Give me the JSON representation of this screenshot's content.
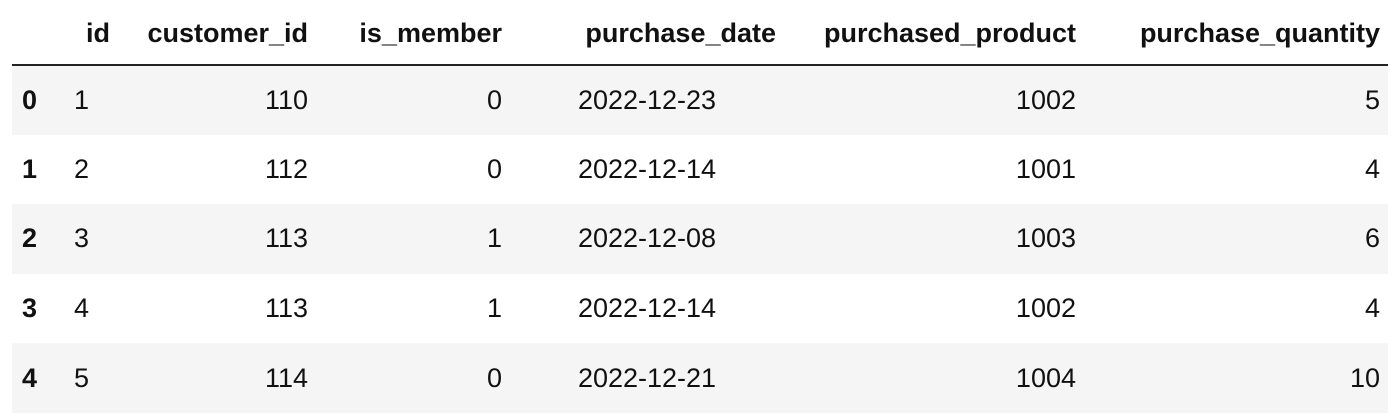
{
  "table": {
    "columns": [
      "id",
      "customer_id",
      "is_member",
      "purchase_date",
      "purchased_product",
      "purchase_quantity"
    ],
    "rows": [
      {
        "index": "0",
        "id": "1",
        "customer_id": "110",
        "is_member": "0",
        "purchase_date": "2022-12-23",
        "purchased_product": "1002",
        "purchase_quantity": "5"
      },
      {
        "index": "1",
        "id": "2",
        "customer_id": "112",
        "is_member": "0",
        "purchase_date": "2022-12-14",
        "purchased_product": "1001",
        "purchase_quantity": "4"
      },
      {
        "index": "2",
        "id": "3",
        "customer_id": "113",
        "is_member": "1",
        "purchase_date": "2022-12-08",
        "purchased_product": "1003",
        "purchase_quantity": "6"
      },
      {
        "index": "3",
        "id": "4",
        "customer_id": "113",
        "is_member": "1",
        "purchase_date": "2022-12-14",
        "purchased_product": "1002",
        "purchase_quantity": "4"
      },
      {
        "index": "4",
        "id": "5",
        "customer_id": "114",
        "is_member": "0",
        "purchase_date": "2022-12-21",
        "purchased_product": "1004",
        "purchase_quantity": "10"
      }
    ]
  }
}
